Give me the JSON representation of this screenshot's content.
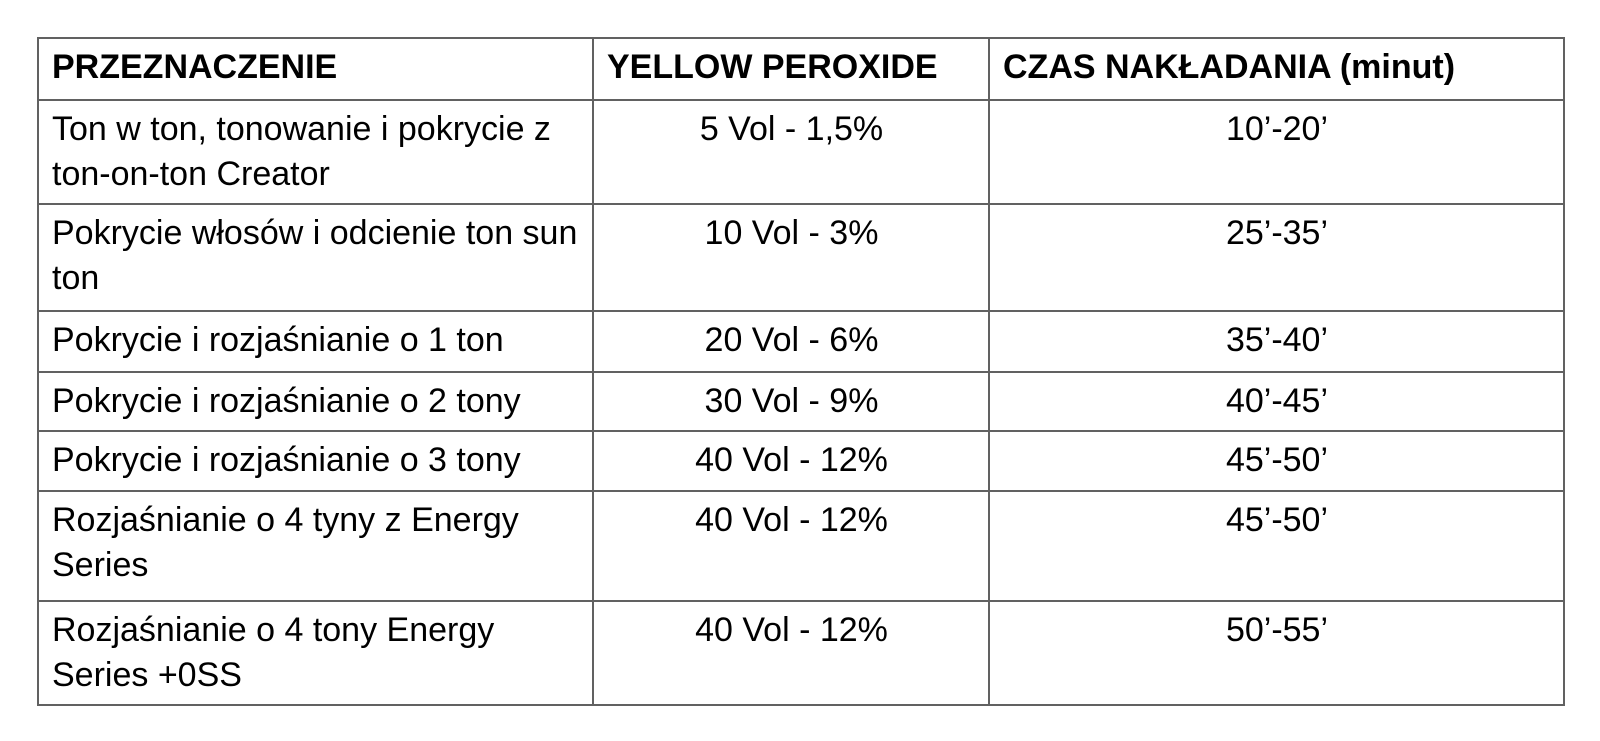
{
  "table": {
    "columns": [
      "PRZEZNACZENIE",
      "YELLOW PEROXIDE",
      "CZAS NAKŁADANIA (minut)"
    ],
    "rows": [
      {
        "przeznaczenie": "Ton w ton, tonowanie i pokrycie z ton-on-ton Creator",
        "peroxide": "5 Vol - 1,5%",
        "czas": "10’-20’"
      },
      {
        "przeznaczenie": "Pokrycie włosów i odcienie ton sun ton",
        "peroxide": "10 Vol - 3%",
        "czas": "25’-35’"
      },
      {
        "przeznaczenie": "Pokrycie i rozjaśnianie o 1 ton",
        "peroxide": "20 Vol - 6%",
        "czas": "35’-40’"
      },
      {
        "przeznaczenie": "Pokrycie i rozjaśnianie o 2 tony",
        "peroxide": "30 Vol - 9%",
        "czas": "40’-45’"
      },
      {
        "przeznaczenie": "Pokrycie i rozjaśnianie o 3 tony",
        "peroxide": "40 Vol - 12%",
        "czas": "45’-50’"
      },
      {
        "przeznaczenie": "Rozjaśnianie o 4 tyny z Energy Series",
        "peroxide": "40 Vol - 12%",
        "czas": "45’-50’"
      },
      {
        "przeznaczenie": "Rozjaśnianie o 4 tony Energy Series +0SS",
        "peroxide": "40 Vol - 12%",
        "czas": "50’-55’"
      }
    ],
    "colors": {
      "border": "#616161",
      "text": "#000000",
      "background": "#ffffff"
    }
  }
}
